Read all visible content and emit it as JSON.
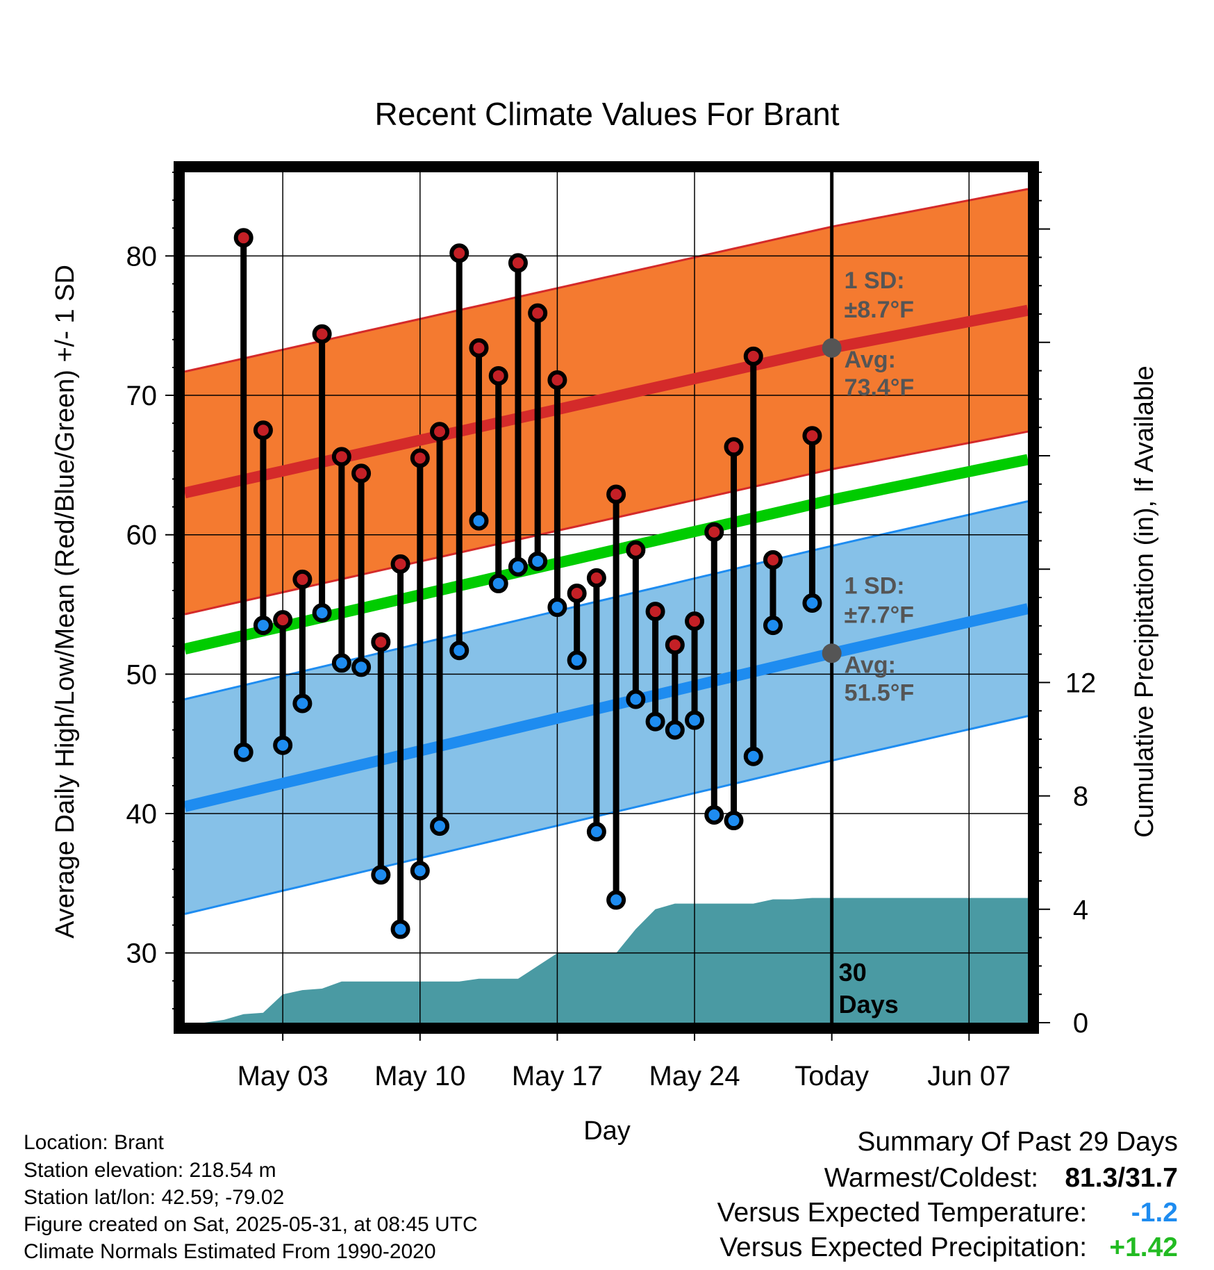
{
  "chart_data": {
    "type": "line",
    "title": "Recent Climate Values For Brant",
    "xlabel": "Day",
    "ylabel": "Average Daily High/Low/Mean (Red/Blue/Green) +/- 1 SD",
    "y2label": "Cumulative Precipitation (in), If Available",
    "ylim": [
      25,
      86
    ],
    "y2lim": [
      0,
      30
    ],
    "y_ticks": [
      30,
      40,
      50,
      60,
      70,
      80
    ],
    "y2_ticks": [
      0,
      4,
      8,
      12
    ],
    "xlim": [
      "2025-04-28",
      "2025-06-10"
    ],
    "x_ticks": [
      {
        "date": "2025-05-03",
        "label": "May 03"
      },
      {
        "date": "2025-05-10",
        "label": "May 10"
      },
      {
        "date": "2025-05-17",
        "label": "May 17"
      },
      {
        "date": "2025-05-24",
        "label": "May 24"
      },
      {
        "date": "2025-05-31",
        "label": "Today"
      },
      {
        "date": "2025-06-07",
        "label": "Jun 07"
      }
    ],
    "grid": true,
    "today": "2025-05-31",
    "daily": [
      {
        "date": "2025-05-01",
        "high": 81.3,
        "low": 44.4
      },
      {
        "date": "2025-05-02",
        "high": 67.5,
        "low": 53.5
      },
      {
        "date": "2025-05-03",
        "high": 53.9,
        "low": 44.9
      },
      {
        "date": "2025-05-04",
        "high": 56.8,
        "low": 47.9
      },
      {
        "date": "2025-05-05",
        "high": 74.4,
        "low": 54.4
      },
      {
        "date": "2025-05-06",
        "high": 65.6,
        "low": 50.8
      },
      {
        "date": "2025-05-07",
        "high": 64.4,
        "low": 50.5
      },
      {
        "date": "2025-05-08",
        "high": 52.3,
        "low": 35.6
      },
      {
        "date": "2025-05-09",
        "high": 57.9,
        "low": 31.7
      },
      {
        "date": "2025-05-10",
        "high": 65.5,
        "low": 35.9
      },
      {
        "date": "2025-05-11",
        "high": 67.4,
        "low": 39.1
      },
      {
        "date": "2025-05-12",
        "high": 80.2,
        "low": 51.7
      },
      {
        "date": "2025-05-13",
        "high": 73.4,
        "low": 61.0
      },
      {
        "date": "2025-05-14",
        "high": 71.4,
        "low": 56.5
      },
      {
        "date": "2025-05-15",
        "high": 79.5,
        "low": 57.7
      },
      {
        "date": "2025-05-16",
        "high": 75.9,
        "low": 58.1
      },
      {
        "date": "2025-05-17",
        "high": 71.1,
        "low": 54.8
      },
      {
        "date": "2025-05-18",
        "high": 55.8,
        "low": 51.0
      },
      {
        "date": "2025-05-19",
        "high": 56.9,
        "low": 38.7
      },
      {
        "date": "2025-05-20",
        "high": 62.9,
        "low": 33.8
      },
      {
        "date": "2025-05-21",
        "high": 58.9,
        "low": 48.2
      },
      {
        "date": "2025-05-22",
        "high": 54.5,
        "low": 46.6
      },
      {
        "date": "2025-05-23",
        "high": 52.1,
        "low": 46.0
      },
      {
        "date": "2025-05-24",
        "high": 53.8,
        "low": 46.7
      },
      {
        "date": "2025-05-25",
        "high": 60.2,
        "low": 39.9
      },
      {
        "date": "2025-05-26",
        "high": 66.3,
        "low": 39.5
      },
      {
        "date": "2025-05-27",
        "high": 72.8,
        "low": 44.1
      },
      {
        "date": "2025-05-28",
        "high": 58.2,
        "low": 53.5
      },
      {
        "date": "2025-05-30",
        "high": 67.1,
        "low": 55.1
      }
    ],
    "normal_high": {
      "dates": [
        "2025-04-28",
        "2025-05-31",
        "2025-06-10"
      ],
      "mean": [
        63.0,
        73.4,
        76.1
      ],
      "sd": 8.7
    },
    "normal_low": {
      "dates": [
        "2025-04-28",
        "2025-05-31",
        "2025-06-10"
      ],
      "mean": [
        40.5,
        51.5,
        54.7
      ],
      "sd": 7.7
    },
    "normal_mean": {
      "dates": [
        "2025-04-28",
        "2025-05-31",
        "2025-06-10"
      ],
      "values": [
        51.8,
        62.5,
        65.4
      ]
    },
    "cumulative_precip": {
      "dates": [
        "2025-04-28",
        "2025-04-29",
        "2025-04-30",
        "2025-05-01",
        "2025-05-02",
        "2025-05-03",
        "2025-05-04",
        "2025-05-05",
        "2025-05-06",
        "2025-05-07",
        "2025-05-08",
        "2025-05-09",
        "2025-05-10",
        "2025-05-11",
        "2025-05-12",
        "2025-05-13",
        "2025-05-14",
        "2025-05-15",
        "2025-05-16",
        "2025-05-17",
        "2025-05-18",
        "2025-05-19",
        "2025-05-20",
        "2025-05-21",
        "2025-05-22",
        "2025-05-23",
        "2025-05-24",
        "2025-05-25",
        "2025-05-26",
        "2025-05-27",
        "2025-05-28",
        "2025-05-29",
        "2025-05-30",
        "2025-05-31",
        "2025-06-10"
      ],
      "values": [
        0.0,
        0.0,
        0.1,
        0.3,
        0.35,
        1.0,
        1.15,
        1.2,
        1.45,
        1.45,
        1.45,
        1.45,
        1.45,
        1.45,
        1.45,
        1.55,
        1.55,
        1.55,
        2.0,
        2.45,
        2.45,
        2.45,
        2.45,
        3.3,
        4.0,
        4.2,
        4.2,
        4.2,
        4.2,
        4.2,
        4.35,
        4.35,
        4.4,
        4.4,
        4.4
      ]
    },
    "annotations": {
      "high_sd": "1 SD:",
      "high_sd_val": "±8.7°F",
      "high_avg": "Avg:",
      "high_avg_val": "73.4°F",
      "low_sd": "1 SD:",
      "low_sd_val": "±7.7°F",
      "low_avg": "Avg:",
      "low_avg_val": "51.5°F",
      "days_num": "30",
      "days_word": "Days"
    },
    "colors": {
      "high_band": "#f47a30",
      "high_line": "#d42a2a",
      "low_band": "#86c1e8",
      "low_line": "#1e8cf0",
      "mean_line": "#00cc00",
      "precip": "#4a9aa3",
      "high_dot": "#c42026",
      "low_dot": "#1e8cf0",
      "annotation": "#555555"
    }
  },
  "info": {
    "location": "Location: Brant",
    "elevation": "Station elevation: 218.54 m",
    "latlon": "Station lat/lon: 42.59; -79.02",
    "created": "Figure created on Sat, 2025-05-31, at 08:45 UTC",
    "normals": "Climate Normals Estimated From 1990-2020"
  },
  "summary": {
    "title": "Summary Of Past 29 Days",
    "warm_cold_label": "Warmest/Coldest:",
    "warm_cold_value": "81.3/31.7",
    "temp_label": "Versus Expected Temperature:",
    "temp_value": "-1.2",
    "temp_color": "#1e8cf0",
    "precip_label": "Versus Expected Precipitation:",
    "precip_value": "+1.42",
    "precip_color": "#22bb22"
  }
}
